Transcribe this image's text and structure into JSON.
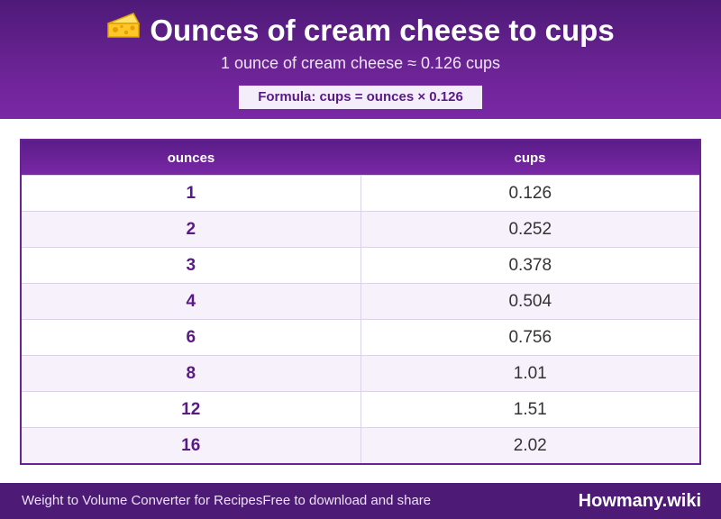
{
  "header": {
    "icon": "cheese-icon",
    "title": "Ounces of cream cheese to cups",
    "subtitle": "1 ounce of cream cheese ≈ 0.126 cups",
    "formula": "Formula: cups = ounces × 0.126"
  },
  "table": {
    "headers": [
      "ounces",
      "cups"
    ],
    "rows": [
      [
        "1",
        "0.126"
      ],
      [
        "2",
        "0.252"
      ],
      [
        "3",
        "0.378"
      ],
      [
        "4",
        "0.504"
      ],
      [
        "6",
        "0.756"
      ],
      [
        "8",
        "1.01"
      ],
      [
        "12",
        "1.51"
      ],
      [
        "16",
        "2.02"
      ]
    ]
  },
  "footer": {
    "left_text_1": "Weight to Volume Converter for Recipes",
    "left_text_2": "Free to download and share",
    "brand": "Howmany.wiki"
  },
  "colors": {
    "header_bg": "#6a2393",
    "footer_bg": "#4d1a76",
    "accent_text": "#5a1a86",
    "row_alt": "#f6f1fa"
  }
}
